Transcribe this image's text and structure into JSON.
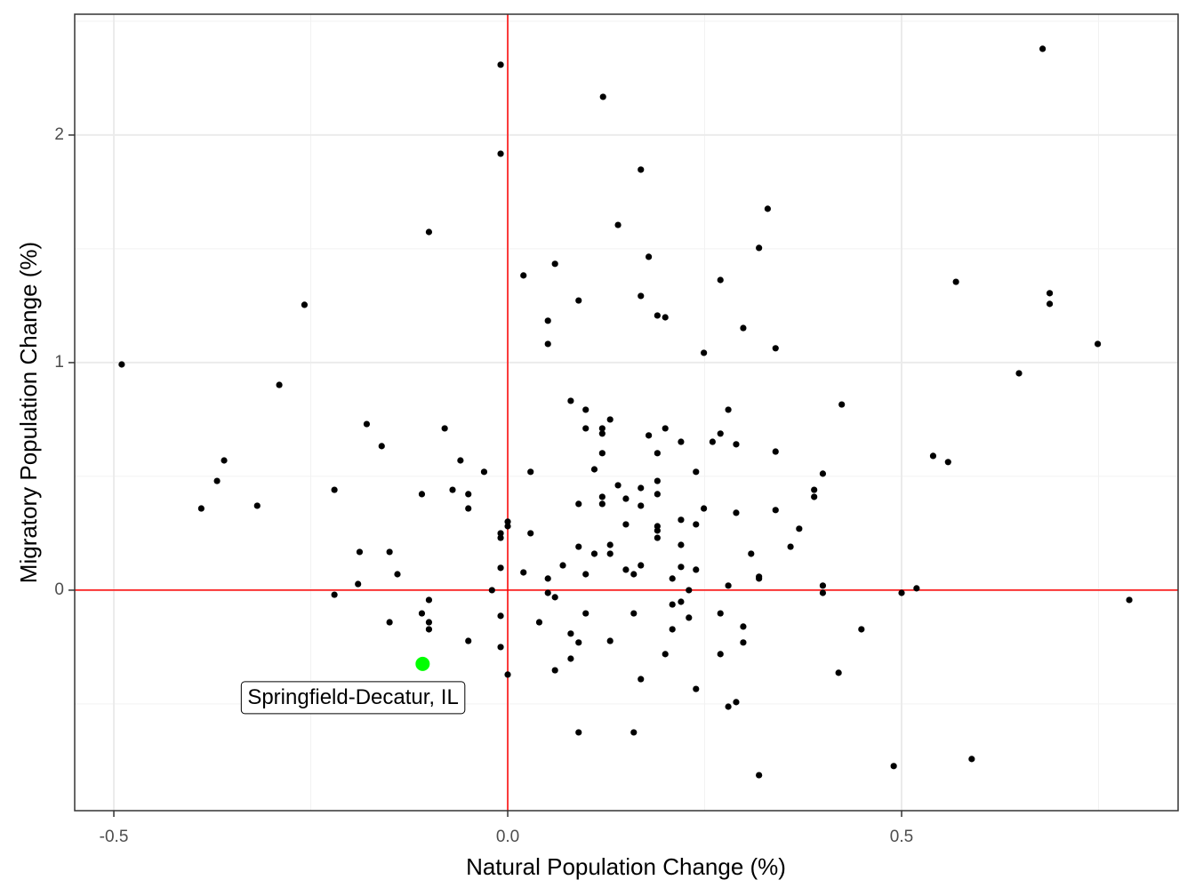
{
  "chart_data": {
    "type": "scatter",
    "xlabel": "Natural Population Change (%)",
    "ylabel": "Migratory Population Change (%)",
    "xlim": [
      -0.5497,
      0.851
    ],
    "ylim": [
      -0.969,
      2.531
    ],
    "xticks": [
      -0.5,
      {
        "value": 0,
        "label": "0.0"
      },
      0.5
    ],
    "yticks": [
      0,
      1,
      2
    ],
    "xminor": [
      -0.25,
      0.25,
      0.75
    ],
    "yminor": [
      -0.5,
      0.5,
      1.5,
      2.5
    ],
    "grid": true,
    "vlines": [
      0
    ],
    "hlines": [
      0
    ],
    "refline_color": "#ff0000",
    "color": "#000000",
    "x": [
      0.679,
      -0.009,
      0.121,
      -0.009,
      0.169,
      0.33,
      0.14,
      -0.1,
      0.319,
      0.179,
      0.06,
      0.02,
      0.27,
      0.569,
      0.688,
      0.169,
      0.09,
      -0.258,
      0.688,
      0.19,
      0.2,
      0.051,
      0.299,
      0.051,
      0.749,
      0.34,
      0.249,
      -0.49,
      0.649,
      -0.29,
      0.08,
      0.424,
      0.099,
      0.28,
      0.13,
      -0.179,
      0.12,
      0.099,
      -0.08,
      0.2,
      0.12,
      0.27,
      0.179,
      0.26,
      0.22,
      -0.16,
      0.29,
      0.12,
      0.19,
      0.34,
      0.54,
      0.559,
      -0.36,
      -0.06,
      0.11,
      -0.03,
      0.239,
      0.029,
      0.4,
      0.19,
      -0.369,
      0.14,
      0.169,
      0.389,
      -0.07,
      -0.22,
      0.19,
      -0.109,
      -0.05,
      0.12,
      0.389,
      0.15,
      0.09,
      0.12,
      -0.318,
      0.169,
      -0.389,
      -0.05,
      0.249,
      0.34,
      0.29,
      0.22,
      0.0,
      0.0,
      0.15,
      0.19,
      0.239,
      0.37,
      0.19,
      -0.009,
      0.029,
      -0.009,
      0.19,
      0.13,
      0.22,
      0.09,
      0.359,
      -0.188,
      -0.15,
      0.11,
      0.13,
      0.309,
      0.07,
      0.169,
      -0.009,
      0.15,
      0.22,
      0.239,
      0.02,
      0.16,
      0.099,
      -0.14,
      0.319,
      0.319,
      0.209,
      0.051,
      -0.19,
      0.28,
      0.4,
      -0.02,
      0.23,
      0.051,
      0.4,
      0.5,
      0.519,
      -0.22,
      0.06,
      -0.1,
      0.789,
      0.22,
      0.209,
      -0.109,
      0.099,
      0.16,
      0.27,
      -0.009,
      0.23,
      -0.15,
      0.04,
      -0.1,
      0.299,
      -0.1,
      0.449,
      0.209,
      0.08,
      -0.05,
      0.13,
      0.09,
      0.299,
      -0.009,
      0.27,
      0.2,
      0.08,
      0.06,
      0.0,
      0.42,
      0.169,
      0.239,
      0.29,
      0.28,
      0.09,
      0.16,
      0.589,
      0.49,
      0.319
    ],
    "y": [
      2.379,
      2.309,
      2.168,
      1.918,
      1.848,
      1.676,
      1.605,
      1.574,
      1.504,
      1.465,
      1.434,
      1.383,
      1.363,
      1.355,
      1.305,
      1.293,
      1.273,
      1.254,
      1.258,
      1.207,
      1.199,
      1.184,
      1.152,
      1.082,
      1.082,
      1.063,
      1.043,
      0.992,
      0.953,
      0.902,
      0.832,
      0.816,
      0.793,
      0.793,
      0.75,
      0.73,
      0.711,
      0.711,
      0.711,
      0.711,
      0.688,
      0.688,
      0.68,
      0.652,
      0.652,
      0.633,
      0.641,
      0.602,
      0.602,
      0.609,
      0.59,
      0.563,
      0.57,
      0.57,
      0.531,
      0.52,
      0.52,
      0.52,
      0.512,
      0.48,
      0.48,
      0.461,
      0.449,
      0.441,
      0.441,
      0.441,
      0.422,
      0.422,
      0.422,
      0.41,
      0.41,
      0.402,
      0.379,
      0.379,
      0.371,
      0.371,
      0.359,
      0.359,
      0.359,
      0.352,
      0.34,
      0.309,
      0.301,
      0.281,
      0.289,
      0.281,
      0.289,
      0.27,
      0.262,
      0.25,
      0.25,
      0.23,
      0.23,
      0.199,
      0.199,
      0.191,
      0.191,
      0.168,
      0.168,
      0.16,
      0.16,
      0.16,
      0.109,
      0.109,
      0.098,
      0.09,
      0.102,
      0.09,
      0.078,
      0.07,
      0.07,
      0.07,
      0.059,
      0.051,
      0.051,
      0.051,
      0.027,
      0.02,
      0.02,
      0.0,
      0.0,
      -0.012,
      -0.012,
      -0.012,
      0.008,
      -0.02,
      -0.031,
      -0.043,
      -0.043,
      -0.051,
      -0.063,
      -0.102,
      -0.102,
      -0.102,
      -0.102,
      -0.113,
      -0.121,
      -0.141,
      -0.141,
      -0.141,
      -0.16,
      -0.172,
      -0.172,
      -0.172,
      -0.191,
      -0.223,
      -0.223,
      -0.23,
      -0.23,
      -0.25,
      -0.281,
      -0.281,
      -0.301,
      -0.352,
      -0.371,
      -0.363,
      -0.391,
      -0.434,
      -0.492,
      -0.512,
      -0.625,
      -0.625,
      -0.742,
      -0.773,
      -0.813
    ],
    "highlight": {
      "label": "Springfield-Decatur, IL",
      "x": -0.108,
      "y": -0.324,
      "color": "#00ff00"
    }
  }
}
